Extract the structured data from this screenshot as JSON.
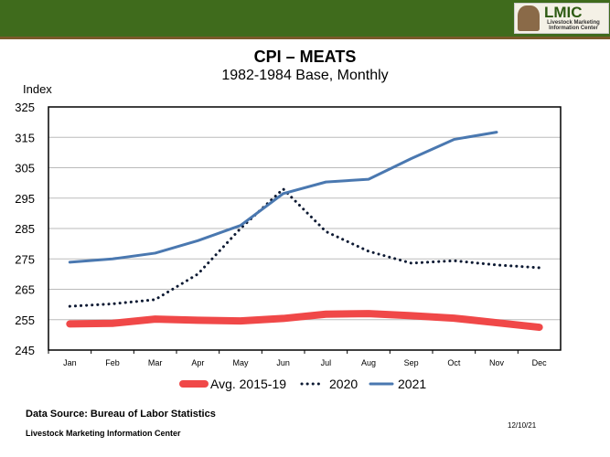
{
  "logo": {
    "text": "LMIC",
    "subtitle": "Livestock Marketing Information Center"
  },
  "chart_data": {
    "type": "line",
    "title": "CPI – MEATS",
    "subtitle": "1982-1984 Base, Monthly",
    "ylabel": "Index",
    "xlabel": "",
    "ylim": [
      245,
      325
    ],
    "yticks": [
      245,
      255,
      265,
      275,
      285,
      295,
      305,
      315,
      325
    ],
    "grid": true,
    "legend": "bottom",
    "categories": [
      "Jan",
      "Feb",
      "Mar",
      "Apr",
      "May",
      "Jun",
      "Jul",
      "Aug",
      "Sep",
      "Oct",
      "Nov",
      "Dec"
    ],
    "series": [
      {
        "name": "Avg. 2015-19",
        "color": "#f04848",
        "style": "thick",
        "values": [
          253.6,
          253.8,
          255.2,
          254.8,
          254.6,
          255.4,
          256.8,
          257.0,
          256.3,
          255.5,
          254.0,
          252.5
        ]
      },
      {
        "name": "2020",
        "color": "#0d1a33",
        "style": "dotted",
        "values": [
          259.4,
          260.2,
          261.6,
          270.0,
          285.0,
          298.0,
          284.0,
          277.5,
          273.6,
          274.4,
          273.0,
          272.1
        ]
      },
      {
        "name": "2021",
        "color": "#4a78b0",
        "style": "solid",
        "values": [
          273.9,
          275.0,
          276.9,
          281.0,
          286.0,
          296.5,
          300.3,
          301.2,
          308.0,
          314.3,
          316.7,
          null
        ]
      }
    ]
  },
  "footer": {
    "source": "Data Source:  Bureau of Labor Statistics",
    "org": "Livestock Marketing Information Center",
    "date": "12/10/21"
  }
}
